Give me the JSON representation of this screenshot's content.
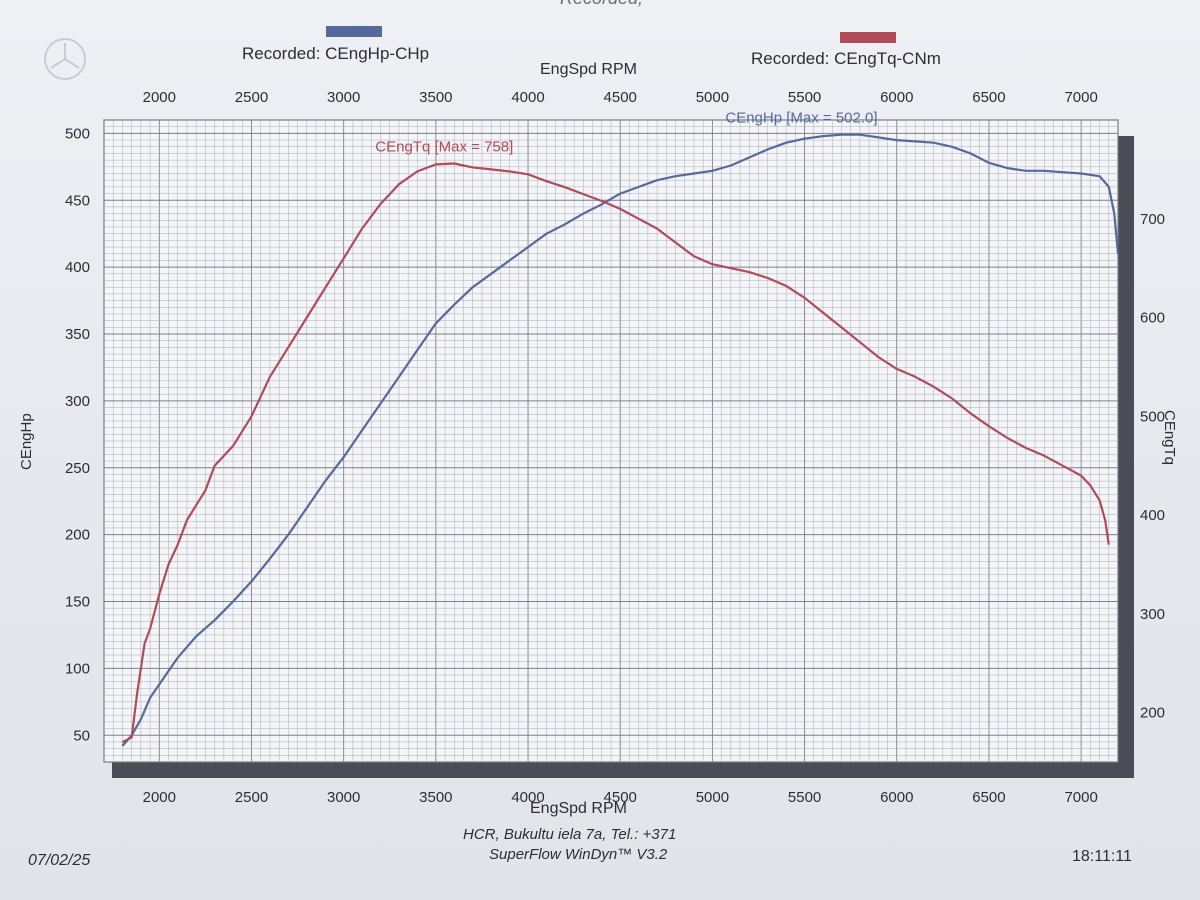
{
  "header": {
    "recorded_top": "Recorded;",
    "legend": [
      {
        "label": "Recorded: CEngHp-CHp",
        "color": "#556a9b"
      },
      {
        "label": "Recorded: CEngTq-CNm",
        "color": "#b24a57"
      }
    ]
  },
  "footer": {
    "line1": "HCR, Bukultu iela 7a, Tel.: +371",
    "line2": "SuperFlow WinDyn™ V3.2",
    "date": "07/02/25",
    "time": "18:11:11"
  },
  "chart_data": {
    "type": "line",
    "xlabel": "EngSpd RPM",
    "xlim": [
      1700,
      7200
    ],
    "x_ticks": [
      2000,
      2500,
      3000,
      3500,
      4000,
      4500,
      5000,
      5500,
      6000,
      6500,
      7000
    ],
    "ylabel": "CEngHp",
    "ylim": [
      30,
      510
    ],
    "y_ticks": [
      50,
      100,
      150,
      200,
      250,
      300,
      350,
      400,
      450,
      500
    ],
    "y2label": "CEngTq",
    "y2lim": [
      150,
      800
    ],
    "y2_ticks": [
      200,
      300,
      400,
      500,
      600,
      700
    ],
    "grid": true,
    "series": [
      {
        "name": "CEngHp",
        "axis": "left",
        "color": "#556a9b",
        "annotation": "CEngHp [Max = 502.0]",
        "x": [
          1800,
          1850,
          1900,
          1950,
          2000,
          2050,
          2100,
          2200,
          2300,
          2400,
          2500,
          2600,
          2700,
          2800,
          2900,
          3000,
          3100,
          3200,
          3300,
          3400,
          3500,
          3600,
          3700,
          3800,
          3900,
          4000,
          4100,
          4200,
          4300,
          4400,
          4500,
          4600,
          4700,
          4800,
          4900,
          5000,
          5100,
          5200,
          5300,
          5400,
          5500,
          5600,
          5700,
          5800,
          5900,
          6000,
          6100,
          6200,
          6300,
          6400,
          6500,
          6600,
          6700,
          6800,
          6900,
          7000,
          7100,
          7150,
          7180,
          7200
        ],
        "values": [
          42,
          50,
          62,
          78,
          88,
          98,
          108,
          124,
          136,
          150,
          165,
          182,
          200,
          220,
          240,
          258,
          278,
          298,
          318,
          338,
          358,
          372,
          385,
          395,
          405,
          415,
          425,
          432,
          440,
          447,
          455,
          460,
          465,
          468,
          470,
          472,
          476,
          482,
          488,
          493,
          496,
          498,
          499,
          499,
          497,
          495,
          494,
          493,
          490,
          485,
          478,
          474,
          472,
          472,
          471,
          470,
          468,
          460,
          440,
          410
        ]
      },
      {
        "name": "CEngTq",
        "axis": "right",
        "color": "#b24a57",
        "annotation": "CEngTq [Max = 758]",
        "x": [
          1800,
          1850,
          1880,
          1920,
          1950,
          2000,
          2050,
          2100,
          2150,
          2200,
          2250,
          2300,
          2400,
          2500,
          2600,
          2700,
          2800,
          2900,
          3000,
          3100,
          3200,
          3300,
          3400,
          3500,
          3600,
          3700,
          3800,
          3900,
          4000,
          4100,
          4200,
          4300,
          4400,
          4500,
          4600,
          4700,
          4800,
          4900,
          5000,
          5100,
          5200,
          5300,
          5400,
          5500,
          5600,
          5700,
          5800,
          5900,
          6000,
          6100,
          6200,
          6300,
          6400,
          6500,
          6600,
          6700,
          6800,
          6900,
          7000,
          7050,
          7100,
          7130,
          7150
        ],
        "values": [
          170,
          175,
          220,
          270,
          285,
          320,
          350,
          370,
          395,
          410,
          425,
          450,
          470,
          500,
          540,
          570,
          600,
          630,
          660,
          690,
          715,
          735,
          748,
          755,
          756,
          752,
          750,
          748,
          745,
          738,
          732,
          725,
          718,
          710,
          700,
          690,
          676,
          662,
          654,
          650,
          646,
          640,
          632,
          620,
          605,
          590,
          575,
          560,
          548,
          540,
          530,
          518,
          503,
          490,
          478,
          468,
          460,
          450,
          440,
          430,
          415,
          395,
          370
        ]
      }
    ]
  }
}
